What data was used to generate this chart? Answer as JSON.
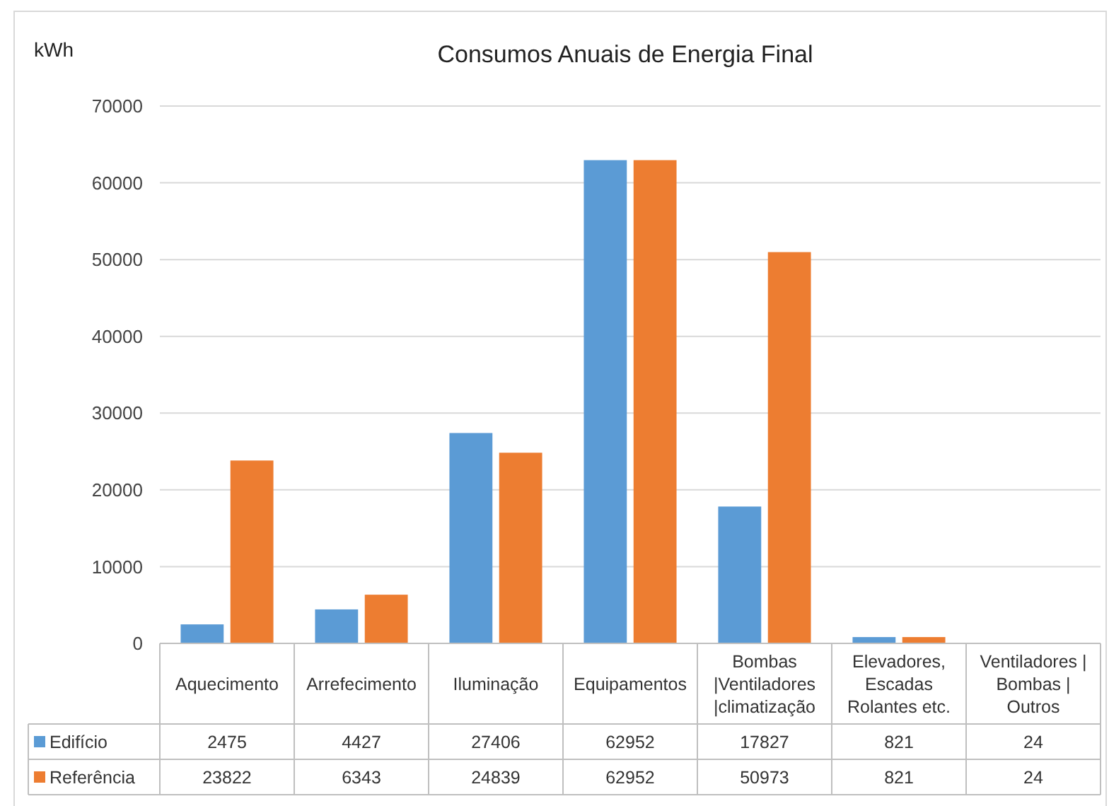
{
  "chart_data": {
    "type": "bar",
    "title": "Consumos Anuais de Energia Final",
    "ylabel": "kWh",
    "categories": [
      "Aquecimento",
      "Arrefecimento",
      "Iluminação",
      "Equipamentos",
      "Bombas |Ventiladores |climatização",
      "Elevadores, Escadas Rolantes etc.",
      "Ventiladores | Bombas | Outros"
    ],
    "series": [
      {
        "name": "Edifício",
        "color": "#5b9bd5",
        "values": [
          2475,
          4427,
          27406,
          62952,
          17827,
          821,
          24
        ]
      },
      {
        "name": "Referência",
        "color": "#ed7d31",
        "values": [
          23822,
          6343,
          24839,
          62952,
          50973,
          821,
          24
        ]
      }
    ],
    "ylim": [
      0,
      70000
    ],
    "yticks": [
      0,
      10000,
      20000,
      30000,
      40000,
      50000,
      60000,
      70000
    ],
    "grid": "y",
    "legend": "bottom",
    "data_labels": true
  }
}
